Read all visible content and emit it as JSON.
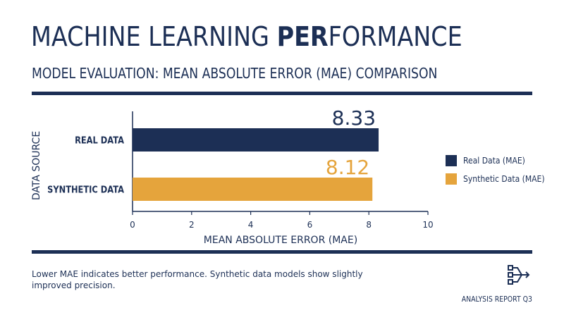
{
  "header": {
    "title_regular_1": "MACHINE LEARNING ",
    "title_bold": "PER",
    "title_regular_2": "FORMANCE",
    "subtitle": "MODEL EVALUATION: MEAN ABSOLUTE ERROR (MAE) COMPARISON"
  },
  "chart_data": {
    "type": "bar",
    "orientation": "horizontal",
    "categories": [
      "REAL DATA",
      "SYNTHETIC DATA"
    ],
    "values": [
      8.33,
      8.12
    ],
    "value_labels": [
      "8.33",
      "8.12"
    ],
    "series": [
      {
        "name": "Real Data (MAE)",
        "values": [
          8.33,
          null
        ],
        "color": "#1c2f55"
      },
      {
        "name": "Synthetic Data (MAE)",
        "values": [
          null,
          8.12
        ],
        "color": "#e5a43c"
      }
    ],
    "xlabel": "MEAN ABSOLUTE ERROR (MAE)",
    "ylabel": "DATA SOURCE",
    "xlim": [
      0,
      10
    ],
    "xticks": [
      "0",
      "2",
      "4",
      "6",
      "8",
      "10"
    ],
    "grid": false,
    "legend_position": "right"
  },
  "legend": {
    "items": [
      {
        "label": "Real Data (MAE)",
        "color": "#1c2f55"
      },
      {
        "label": "Synthetic Data (MAE)",
        "color": "#e5a43c"
      }
    ]
  },
  "footer": {
    "note": "Lower MAE indicates better performance. Synthetic data models show slightly improved precision.",
    "report_label": "ANALYSIS REPORT Q3",
    "icon": "network-icon"
  },
  "colors": {
    "primary": "#1c2f55",
    "accent": "#e5a43c"
  }
}
